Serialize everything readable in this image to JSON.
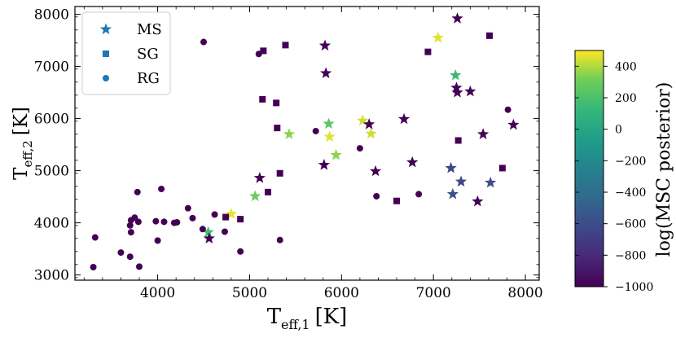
{
  "chart_data": {
    "type": "scatter",
    "x": "T_eff,1 [K]",
    "xlabel": {
      "main": "T",
      "sub": "eff,1",
      "unit": "[K]"
    },
    "ylabel": {
      "main": "T",
      "sub": "eff,2",
      "unit": "[K]"
    },
    "xlim": [
      3100,
      8150
    ],
    "ylim": [
      2900,
      8150
    ],
    "xticks": [
      4000,
      5000,
      6000,
      7000,
      8000
    ],
    "yticks": [
      3000,
      4000,
      5000,
      6000,
      7000,
      8000
    ],
    "xtick_labels": [
      "4000",
      "5000",
      "6000",
      "7000",
      "8000"
    ],
    "ytick_labels": [
      "3000",
      "4000",
      "5000",
      "6000",
      "7000",
      "8000"
    ],
    "legend": {
      "placement": "top-left",
      "entries": [
        {
          "label": "MS",
          "marker": "star"
        },
        {
          "label": "SG",
          "marker": "square"
        },
        {
          "label": "RG",
          "marker": "circle"
        }
      ],
      "marker_color": "#1f77b4"
    },
    "colorbar": {
      "label": "log(MSC posterior)",
      "range": [
        -1000,
        500
      ],
      "ticks": [
        -1000,
        -800,
        -600,
        -400,
        -200,
        0,
        200,
        400
      ],
      "tick_labels": [
        "−1000",
        "−800",
        "−600",
        "−400",
        "−200",
        "0",
        "200",
        "400"
      ],
      "colormap": "viridis"
    },
    "series": [
      {
        "name": "MS",
        "marker": "star",
        "points": [
          {
            "x": 7260,
            "y": 7920,
            "c": -1000
          },
          {
            "x": 7050,
            "y": 7550,
            "c": 460
          },
          {
            "x": 5820,
            "y": 7400,
            "c": -1000
          },
          {
            "x": 5830,
            "y": 6870,
            "c": -1000
          },
          {
            "x": 7240,
            "y": 6830,
            "c": 150
          },
          {
            "x": 7250,
            "y": 6590,
            "c": -1000
          },
          {
            "x": 7260,
            "y": 6500,
            "c": -1000
          },
          {
            "x": 7400,
            "y": 6520,
            "c": -1000
          },
          {
            "x": 6680,
            "y": 5990,
            "c": -1000
          },
          {
            "x": 6230,
            "y": 5960,
            "c": 440
          },
          {
            "x": 6300,
            "y": 5890,
            "c": -1000
          },
          {
            "x": 5860,
            "y": 5900,
            "c": 250
          },
          {
            "x": 5430,
            "y": 5700,
            "c": 350
          },
          {
            "x": 5870,
            "y": 5650,
            "c": 460
          },
          {
            "x": 6320,
            "y": 5710,
            "c": 440
          },
          {
            "x": 7540,
            "y": 5700,
            "c": -1000
          },
          {
            "x": 7870,
            "y": 5880,
            "c": -1000
          },
          {
            "x": 5940,
            "y": 5300,
            "c": 350
          },
          {
            "x": 5810,
            "y": 5110,
            "c": -1000
          },
          {
            "x": 6770,
            "y": 5160,
            "c": -1000
          },
          {
            "x": 6370,
            "y": 4990,
            "c": -1000
          },
          {
            "x": 5110,
            "y": 4860,
            "c": -1000
          },
          {
            "x": 7190,
            "y": 5050,
            "c": -650
          },
          {
            "x": 7300,
            "y": 4790,
            "c": -650
          },
          {
            "x": 7620,
            "y": 4770,
            "c": -600
          },
          {
            "x": 7210,
            "y": 4550,
            "c": -580
          },
          {
            "x": 7480,
            "y": 4410,
            "c": -1000
          },
          {
            "x": 5060,
            "y": 4510,
            "c": 300
          },
          {
            "x": 4800,
            "y": 4170,
            "c": 470
          },
          {
            "x": 4550,
            "y": 3820,
            "c": 170
          },
          {
            "x": 4560,
            "y": 3700,
            "c": -1000
          }
        ]
      },
      {
        "name": "SG",
        "marker": "square",
        "points": [
          {
            "x": 7610,
            "y": 7590,
            "c": -1000
          },
          {
            "x": 5390,
            "y": 7410,
            "c": -1000
          },
          {
            "x": 5150,
            "y": 7300,
            "c": -1000
          },
          {
            "x": 6940,
            "y": 7280,
            "c": -1000
          },
          {
            "x": 5140,
            "y": 6370,
            "c": -1000
          },
          {
            "x": 5290,
            "y": 6300,
            "c": -1000
          },
          {
            "x": 5300,
            "y": 5820,
            "c": -1000
          },
          {
            "x": 7270,
            "y": 5580,
            "c": -1000
          },
          {
            "x": 7750,
            "y": 5050,
            "c": -1000
          },
          {
            "x": 5330,
            "y": 4950,
            "c": -1000
          },
          {
            "x": 5200,
            "y": 4590,
            "c": -1000
          },
          {
            "x": 6600,
            "y": 4420,
            "c": -1000
          },
          {
            "x": 4740,
            "y": 4110,
            "c": -1000
          },
          {
            "x": 4900,
            "y": 4070,
            "c": -1000
          }
        ]
      },
      {
        "name": "RG",
        "marker": "circle",
        "points": [
          {
            "x": 4500,
            "y": 7470,
            "c": -1000
          },
          {
            "x": 5100,
            "y": 7240,
            "c": -1000
          },
          {
            "x": 7810,
            "y": 6170,
            "c": -1000
          },
          {
            "x": 5720,
            "y": 5760,
            "c": -1000
          },
          {
            "x": 6200,
            "y": 5430,
            "c": -1000
          },
          {
            "x": 6380,
            "y": 4510,
            "c": -1000
          },
          {
            "x": 6840,
            "y": 4550,
            "c": -1000
          },
          {
            "x": 4040,
            "y": 4650,
            "c": -1000
          },
          {
            "x": 3780,
            "y": 4590,
            "c": -1000
          },
          {
            "x": 4330,
            "y": 4280,
            "c": -1000
          },
          {
            "x": 4620,
            "y": 4160,
            "c": -1000
          },
          {
            "x": 3710,
            "y": 4050,
            "c": -1000
          },
          {
            "x": 3750,
            "y": 4100,
            "c": -1000
          },
          {
            "x": 3790,
            "y": 4020,
            "c": -1000
          },
          {
            "x": 3980,
            "y": 4030,
            "c": -1000
          },
          {
            "x": 4070,
            "y": 4020,
            "c": -1000
          },
          {
            "x": 4180,
            "y": 4000,
            "c": -1000
          },
          {
            "x": 4210,
            "y": 4010,
            "c": -1000
          },
          {
            "x": 4380,
            "y": 4090,
            "c": -1000
          },
          {
            "x": 3700,
            "y": 3950,
            "c": -1000
          },
          {
            "x": 4490,
            "y": 3880,
            "c": -1000
          },
          {
            "x": 3710,
            "y": 3820,
            "c": -1000
          },
          {
            "x": 4730,
            "y": 3830,
            "c": -1000
          },
          {
            "x": 3320,
            "y": 3720,
            "c": -1000
          },
          {
            "x": 4000,
            "y": 3660,
            "c": -1000
          },
          {
            "x": 5330,
            "y": 3670,
            "c": -1000
          },
          {
            "x": 3600,
            "y": 3430,
            "c": -1000
          },
          {
            "x": 3700,
            "y": 3350,
            "c": -1000
          },
          {
            "x": 4900,
            "y": 3450,
            "c": -1000
          },
          {
            "x": 3300,
            "y": 3150,
            "c": -1000
          },
          {
            "x": 3800,
            "y": 3160,
            "c": -1000
          }
        ]
      }
    ]
  }
}
